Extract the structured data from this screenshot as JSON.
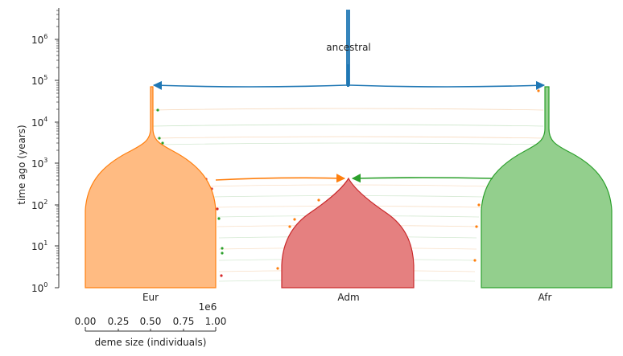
{
  "axes": {
    "ylabel": "time ago (years)",
    "yticks": [
      {
        "base": "10",
        "exp": "0"
      },
      {
        "base": "10",
        "exp": "1"
      },
      {
        "base": "10",
        "exp": "2"
      },
      {
        "base": "10",
        "exp": "3"
      },
      {
        "base": "10",
        "exp": "4"
      },
      {
        "base": "10",
        "exp": "5"
      },
      {
        "base": "10",
        "exp": "6"
      }
    ],
    "scale": "log"
  },
  "size_scale": {
    "label": "deme size (individuals)",
    "offset_label": "1e6",
    "ticks": [
      "0.00",
      "0.25",
      "0.50",
      "0.75",
      "1.00"
    ]
  },
  "demes": {
    "ancestral": {
      "label": "ancestral",
      "color": "#1f77b4"
    },
    "eur": {
      "label": "Eur",
      "color": "#ff7f0e"
    },
    "adm": {
      "label": "Adm",
      "color": "#d62728"
    },
    "afr": {
      "label": "Afr",
      "color": "#2ca02c"
    }
  },
  "arrows": [
    {
      "from": "ancestral",
      "to": "Eur"
    },
    {
      "from": "ancestral",
      "to": "Afr"
    },
    {
      "from": "Eur",
      "to": "Adm"
    },
    {
      "from": "Afr",
      "to": "Adm"
    }
  ]
}
